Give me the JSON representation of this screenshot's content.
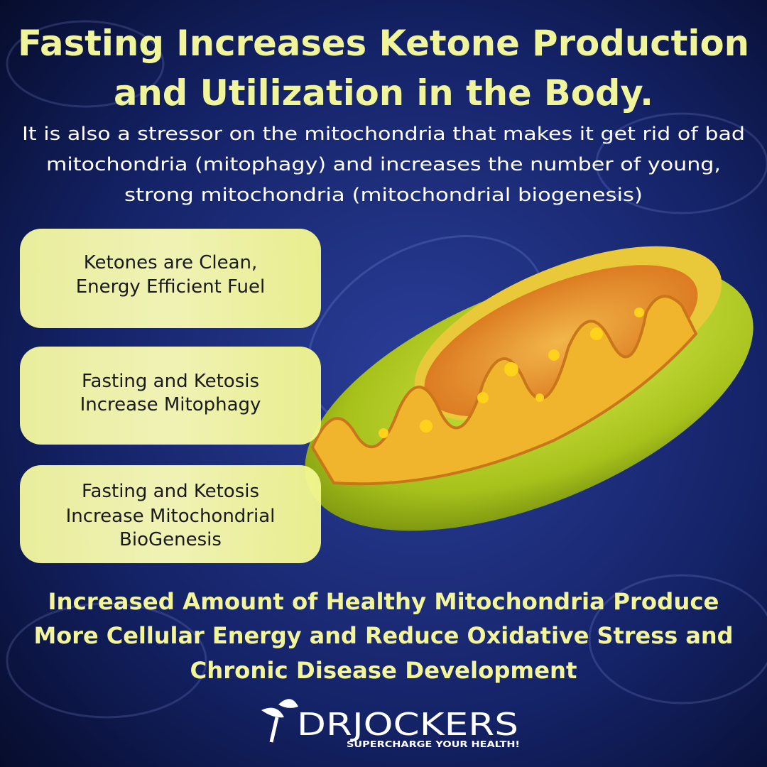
{
  "header": {
    "title_lines": [
      "Fasting Increases Ketone Production",
      "and Utilization in the Body."
    ],
    "subtitle_lines": [
      "It is also a stressor on the mitochondria that makes it get rid of bad",
      "mitochondria (mitophagy) and increases the number of young,",
      "strong mitochondria (mitochondrial biogenesis)"
    ]
  },
  "boxes": [
    {
      "lines": [
        "Ketones are Clean,",
        "Energy Efficient Fuel"
      ]
    },
    {
      "lines": [
        "Fasting and Ketosis",
        "Increase Mitophagy"
      ]
    },
    {
      "lines": [
        "Fasting and Ketosis",
        "Increase Mitochondrial",
        "BioGenesis"
      ]
    }
  ],
  "footer": {
    "lines": [
      "Increased Amount of Healthy Mitochondria Produce",
      "More Cellular Energy and Reduce Oxidative Stress and",
      "Chronic Disease Development"
    ]
  },
  "logo": {
    "name": "DRJOCKERS",
    "tagline": "SUPERCHARGE YOUR HEALTH!"
  }
}
